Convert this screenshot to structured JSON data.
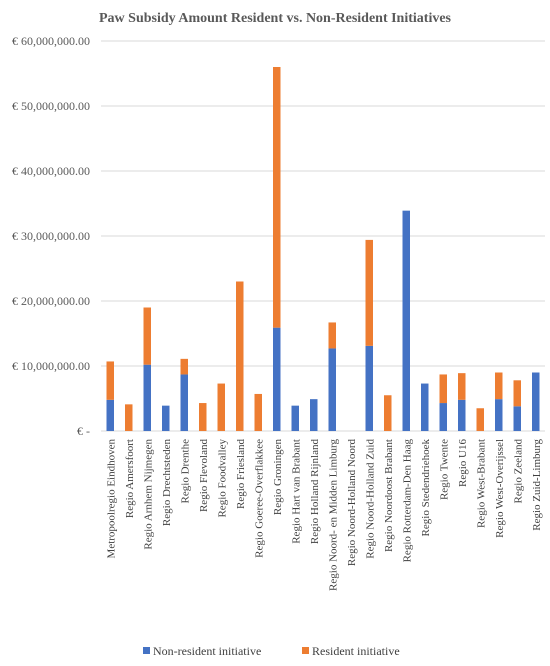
{
  "chart_data": {
    "type": "bar",
    "stacked": true,
    "title": "Paw Subsidy Amount Resident vs. Non-Resident Initiatives",
    "xlabel": "",
    "ylabel": "",
    "ylim": [
      0,
      60000000
    ],
    "y_ticks": [
      0,
      10000000,
      20000000,
      30000000,
      40000000,
      50000000,
      60000000
    ],
    "y_tick_labels": [
      "€ -",
      "€ 10,000,000.00",
      "€ 20,000,000.00",
      "€ 30,000,000.00",
      "€ 40,000,000.00",
      "€ 50,000,000.00",
      "€ 60,000,000.00"
    ],
    "grid": true,
    "legend_position": "bottom",
    "categories": [
      "Metropoolregio Eindhoven",
      "Regio Amersfoort",
      "Regio Arnhem Nijmegen",
      "Regio Drechtsteden",
      "Regio Drenthe",
      "Regio Flevoland",
      "Regio Foodvalley",
      "Regio Friesland",
      "Regio Goeree-Overflakkee",
      "Regio Groningen",
      "Regio Hart van Brabant",
      "Regio Holland Rijnland",
      "Regio Noord- en Midden Limburg",
      "Regio Noord-Holland Noord",
      "Regio Noord-Holland Zuid",
      "Regio Noordoost Brabant",
      "Regio Rotterdam-Den Haag",
      "Regio Stedendriehoek",
      "Regio Twente",
      "Regio U16",
      "Regio West-Brabant",
      "Regio West-Overijssel",
      "Regio Zeeland",
      "Regio Zuid-Limburg"
    ],
    "series": [
      {
        "name": "Non-resident initiative",
        "color": "#4472C4",
        "values": [
          4800000,
          0,
          10200000,
          3900000,
          8700000,
          0,
          0,
          0,
          0,
          15900000,
          3900000,
          4900000,
          12700000,
          0,
          13100000,
          0,
          33900000,
          7300000,
          4300000,
          4800000,
          0,
          4900000,
          3800000,
          9000000
        ]
      },
      {
        "name": "Resident initiative",
        "color": "#ED7D31",
        "values": [
          5900000,
          4100000,
          8800000,
          0,
          2400000,
          4300000,
          7300000,
          23000000,
          5700000,
          40100000,
          0,
          0,
          4000000,
          0,
          16300000,
          5500000,
          0,
          0,
          4400000,
          4100000,
          3500000,
          4100000,
          4000000,
          0
        ]
      }
    ]
  }
}
